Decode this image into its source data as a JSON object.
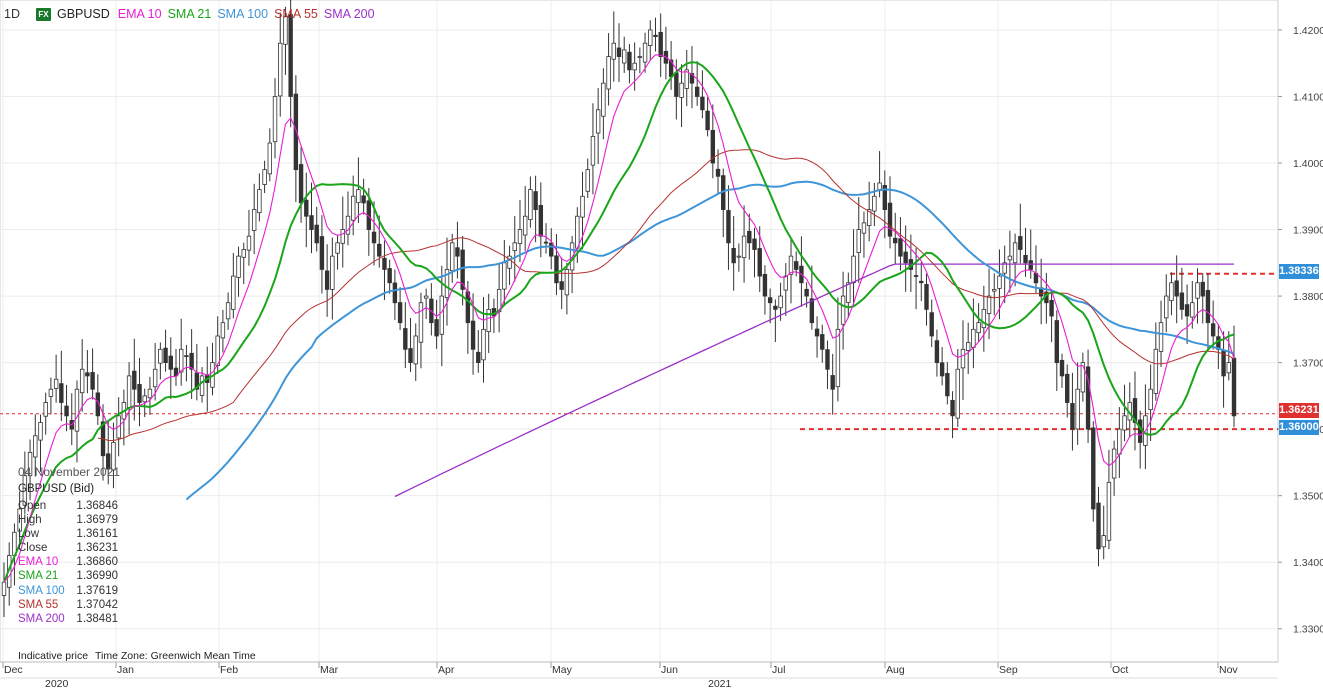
{
  "header": {
    "timeframe": "1D",
    "symbol_badge": "FX",
    "symbol": "GBPUSD",
    "legend": [
      {
        "label": "EMA 10",
        "color": "#e81fd4"
      },
      {
        "label": "SMA 21",
        "color": "#1aa51a"
      },
      {
        "label": "SMA 100",
        "color": "#3e95d8"
      },
      {
        "label": "SMA 55",
        "color": "#b5322e"
      },
      {
        "label": "SMA 200",
        "color": "#9b30c7"
      }
    ]
  },
  "info_panel": {
    "date": "04 November 2021",
    "title": "GBPUSD (Bid)",
    "rows": [
      {
        "label": "Open",
        "value": "1.36846",
        "color": "#333333"
      },
      {
        "label": "High",
        "value": "1.36979",
        "color": "#333333"
      },
      {
        "label": "Low",
        "value": "1.36161",
        "color": "#333333"
      },
      {
        "label": "Close",
        "value": "1.36231",
        "color": "#333333"
      },
      {
        "label": "EMA 10",
        "value": "1.36860",
        "color": "#e81fd4"
      },
      {
        "label": "SMA 21",
        "value": "1.36990",
        "color": "#1aa51a"
      },
      {
        "label": "SMA 100",
        "value": "1.37619",
        "color": "#3e95d8"
      },
      {
        "label": "SMA 55",
        "value": "1.37042",
        "color": "#b5322e"
      },
      {
        "label": "SMA 200",
        "value": "1.38481",
        "color": "#9b30c7"
      }
    ]
  },
  "footer": {
    "price_note": "Indicative price",
    "timezone": "Time Zone: Greenwich Mean Time"
  },
  "price_tags": [
    {
      "value": "1.38336",
      "color": "#2f8fd8"
    },
    {
      "value": "1.36231",
      "color": "#e03030"
    },
    {
      "value": "1.36000",
      "color": "#2f8fd8"
    }
  ],
  "chart_data": {
    "type": "candlestick",
    "title": "GBPUSD",
    "ylim": [
      1.325,
      1.4245
    ],
    "y_ticks": [
      "1.42000",
      "1.41000",
      "1.40000",
      "1.39000",
      "1.38000",
      "1.37000",
      "1.36000",
      "1.35000",
      "1.34000",
      "1.33000"
    ],
    "x_months": [
      "Dec",
      "Jan",
      "Feb",
      "Mar",
      "Apr",
      "May",
      "Jun",
      "Jul",
      "Aug",
      "Sep",
      "Oct",
      "Nov"
    ],
    "x_years": [
      "2020",
      "2021"
    ],
    "horizontal_lines": [
      {
        "value": 1.38336,
        "style": "dashed",
        "color": "#e03030"
      },
      {
        "value": 1.36231,
        "style": "dashed",
        "color": "#e03030"
      },
      {
        "value": 1.36,
        "style": "dashed",
        "color": "#e03030"
      }
    ],
    "candles_close": [
      1.337,
      1.341,
      1.3445,
      1.348,
      1.353,
      1.3565,
      1.359,
      1.361,
      1.364,
      1.366,
      1.3675,
      1.364,
      1.362,
      1.36,
      1.366,
      1.369,
      1.368,
      1.366,
      1.362,
      1.356,
      1.354,
      1.358,
      1.362,
      1.364,
      1.368,
      1.366,
      1.364,
      1.365,
      1.366,
      1.369,
      1.372,
      1.37,
      1.369,
      1.368,
      1.372,
      1.371,
      1.369,
      1.366,
      1.368,
      1.367,
      1.37,
      1.374,
      1.376,
      1.379,
      1.383,
      1.386,
      1.387,
      1.389,
      1.393,
      1.396,
      1.399,
      1.403,
      1.41,
      1.418,
      1.422,
      1.41,
      1.399,
      1.394,
      1.392,
      1.39,
      1.388,
      1.384,
      1.381,
      1.386,
      1.388,
      1.39,
      1.392,
      1.395,
      1.396,
      1.394,
      1.39,
      1.388,
      1.386,
      1.384,
      1.382,
      1.379,
      1.376,
      1.372,
      1.37,
      1.374,
      1.379,
      1.38,
      1.376,
      1.374,
      1.38,
      1.384,
      1.388,
      1.386,
      1.381,
      1.376,
      1.372,
      1.37,
      1.375,
      1.378,
      1.377,
      1.381,
      1.385,
      1.386,
      1.388,
      1.39,
      1.392,
      1.396,
      1.393,
      1.389,
      1.388,
      1.386,
      1.382,
      1.381,
      1.384,
      1.388,
      1.392,
      1.395,
      1.399,
      1.404,
      1.408,
      1.412,
      1.416,
      1.418,
      1.416,
      1.417,
      1.414,
      1.415,
      1.416,
      1.418,
      1.42,
      1.419,
      1.416,
      1.415,
      1.413,
      1.41,
      1.412,
      1.414,
      1.412,
      1.41,
      1.408,
      1.405,
      1.4,
      1.398,
      1.393,
      1.388,
      1.385,
      1.386,
      1.389,
      1.388,
      1.387,
      1.383,
      1.38,
      1.379,
      1.378,
      1.38,
      1.383,
      1.386,
      1.384,
      1.382,
      1.38,
      1.376,
      1.374,
      1.372,
      1.369,
      1.366,
      1.375,
      1.38,
      1.382,
      1.386,
      1.39,
      1.391,
      1.393,
      1.395,
      1.397,
      1.393,
      1.389,
      1.388,
      1.386,
      1.385,
      1.384,
      1.383,
      1.382,
      1.378,
      1.374,
      1.37,
      1.368,
      1.365,
      1.362,
      1.369,
      1.372,
      1.373,
      1.375,
      1.376,
      1.378,
      1.38,
      1.381,
      1.383,
      1.385,
      1.386,
      1.388,
      1.387,
      1.385,
      1.384,
      1.382,
      1.38,
      1.379,
      1.377,
      1.37,
      1.368,
      1.364,
      1.36,
      1.366,
      1.37,
      1.36,
      1.348,
      1.342,
      1.344,
      1.352,
      1.357,
      1.36,
      1.362,
      1.364,
      1.361,
      1.358,
      1.362,
      1.366,
      1.372,
      1.376,
      1.38,
      1.382,
      1.38,
      1.378,
      1.377,
      1.379,
      1.382,
      1.38,
      1.376,
      1.374,
      1.372,
      1.368,
      1.37,
      1.362
    ]
  }
}
